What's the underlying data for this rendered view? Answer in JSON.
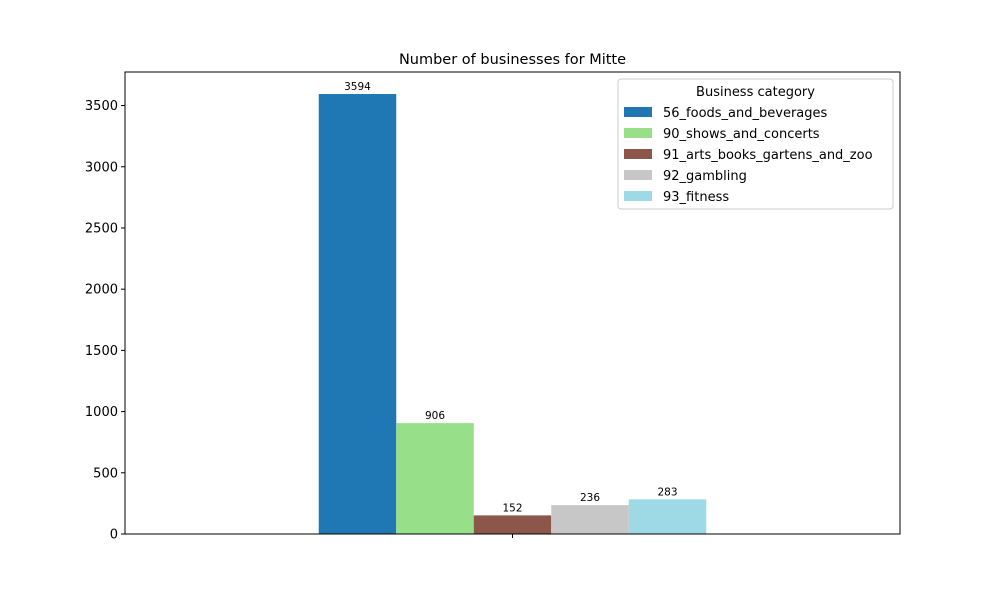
{
  "chart_data": {
    "type": "bar",
    "title": "Number of businesses for Mitte",
    "xlabel": "",
    "ylabel": "",
    "categories": [
      ""
    ],
    "ylim": [
      0,
      3774
    ],
    "yticks": [
      0,
      500,
      1000,
      1500,
      2000,
      2500,
      3000,
      3500
    ],
    "grid": false,
    "legend": {
      "title": "Business category",
      "placement": "top-right"
    },
    "series": [
      {
        "name": "56_foods_and_beverages",
        "values": [
          3594
        ],
        "color": "#1f77b4",
        "label": "3594"
      },
      {
        "name": "90_shows_and_concerts",
        "values": [
          906
        ],
        "color": "#98df8a",
        "label": "906"
      },
      {
        "name": "91_arts_books_gartens_and_zoo",
        "values": [
          152
        ],
        "color": "#8c564b",
        "label": "152"
      },
      {
        "name": "92_gambling",
        "values": [
          236
        ],
        "color": "#c7c7c7",
        "label": "236"
      },
      {
        "name": "93_fitness",
        "values": [
          283
        ],
        "color": "#9edae5",
        "label": "283"
      }
    ]
  }
}
